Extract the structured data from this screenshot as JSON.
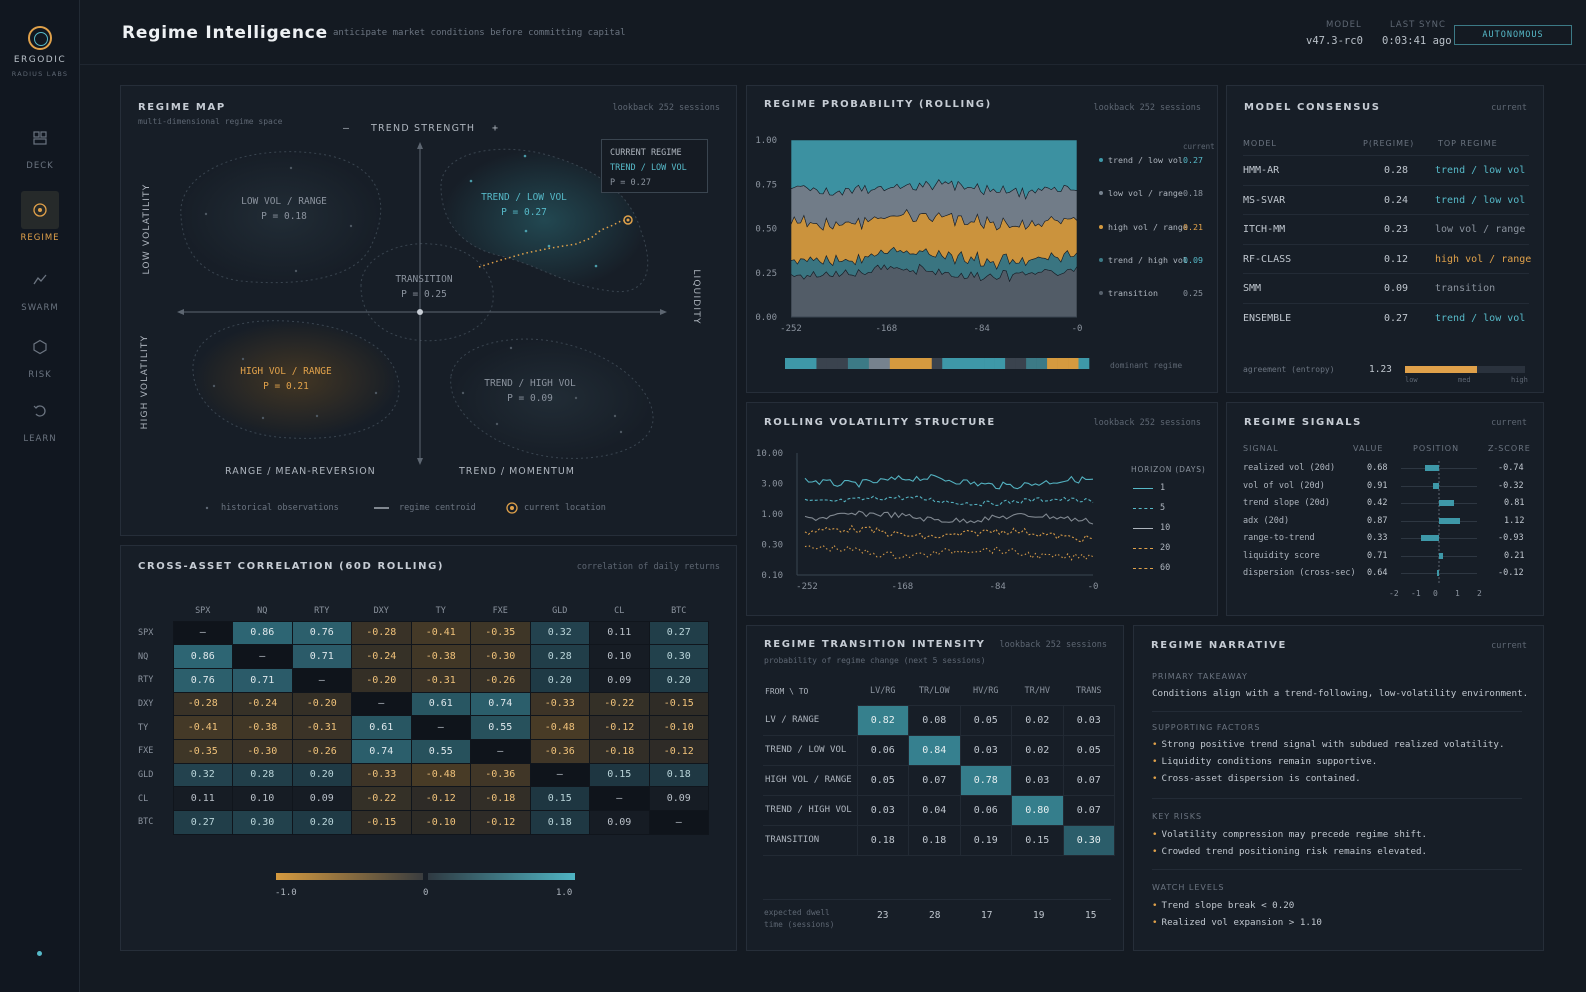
{
  "sidebar": {
    "brand": "ERGODIC",
    "sub": "RADIUS LABS",
    "items": [
      {
        "label": "DECK",
        "icon": "deck-icon"
      },
      {
        "label": "REGIME",
        "icon": "regime-icon"
      },
      {
        "label": "SWARM",
        "icon": "swarm-icon"
      },
      {
        "label": "RISK",
        "icon": "risk-icon"
      },
      {
        "label": "LEARN",
        "icon": "learn-icon"
      }
    ]
  },
  "header": {
    "title": "Regime Intelligence",
    "subtitle": "anticipate market conditions before committing capital",
    "model_label": "MODEL",
    "model_value": "v47.3-rc0",
    "sync_label": "LAST SYNC",
    "sync_value": "0:03:41 ago",
    "mode": "AUTONOMOUS"
  },
  "regime_map": {
    "title": "REGIME MAP",
    "subtitle": "multi-dimensional regime space",
    "meta": "lookback 252 sessions",
    "top_axis": "TREND STRENGTH",
    "minus": "–",
    "plus": "+",
    "left_top": "LOW VOLATILITY",
    "left_bottom": "HIGH VOLATILITY",
    "right_axis": "LIQUIDITY",
    "bottom_left": "RANGE / MEAN-REVERSION",
    "bottom_right": "TREND / MOMENTUM",
    "regimes": [
      {
        "name": "LOW VOL / RANGE",
        "p": "P = 0.18"
      },
      {
        "name": "TREND / LOW VOL",
        "p": "P = 0.27"
      },
      {
        "name": "TRANSITION",
        "p": "P = 0.25"
      },
      {
        "name": "HIGH VOL / RANGE",
        "p": "P = 0.21"
      },
      {
        "name": "TREND / HIGH VOL",
        "p": "P = 0.09"
      }
    ],
    "current": {
      "label": "CURRENT REGIME",
      "name": "TREND / LOW VOL",
      "p": "P = 0.27"
    },
    "legend": [
      "historical observations",
      "regime centroid",
      "current location"
    ]
  },
  "probability": {
    "title": "REGIME PROBABILITY (ROLLING)",
    "meta": "lookback 252 sessions",
    "current_label": "current",
    "y_ticks": [
      "1.00",
      "0.75",
      "0.50",
      "0.25",
      "0.00"
    ],
    "x_ticks": [
      "-252",
      "-168",
      "-84",
      "-0"
    ],
    "legend": [
      {
        "name": "trend / low vol",
        "value": "0.27",
        "color": "#3e98a8"
      },
      {
        "name": "low vol / range",
        "value": "0.18",
        "color": "#76828e"
      },
      {
        "name": "high vol / range",
        "value": "0.21",
        "color": "#d59a3f"
      },
      {
        "name": "trend / high vol",
        "value": "0.09",
        "color": "#3c7a86"
      },
      {
        "name": "transition",
        "value": "0.25",
        "color": "#56606b"
      }
    ],
    "dominant_label": "dominant regime"
  },
  "consensus": {
    "title": "MODEL CONSENSUS",
    "meta": "current",
    "headers": [
      "MODEL",
      "P(REGIME)",
      "TOP REGIME"
    ],
    "rows": [
      {
        "model": "HMM-AR",
        "p": "0.28",
        "top": "trend / low vol",
        "tone": "teal"
      },
      {
        "model": "MS-SVAR",
        "p": "0.24",
        "top": "trend / low vol",
        "tone": "teal"
      },
      {
        "model": "ITCH-MM",
        "p": "0.23",
        "top": "low vol / range",
        "tone": "muted"
      },
      {
        "model": "RF-CLASS",
        "p": "0.12",
        "top": "high vol / range",
        "tone": "amber"
      },
      {
        "model": "SMM",
        "p": "0.09",
        "top": "transition",
        "tone": "muted"
      },
      {
        "model": "ENSEMBLE",
        "p": "0.27",
        "top": "trend / low vol",
        "tone": "teal"
      }
    ],
    "agreement_label": "agreement (entropy)",
    "agreement_value": "1.23",
    "agreement_fill": 0.6,
    "scale": [
      "low",
      "med",
      "high"
    ]
  },
  "volatility": {
    "title": "ROLLING VOLATILITY STRUCTURE",
    "meta": "lookback 252 sessions",
    "y_ticks": [
      "10.00",
      "3.00",
      "1.00",
      "0.30",
      "0.10"
    ],
    "x_ticks": [
      "-252",
      "-168",
      "-84",
      "-0"
    ],
    "legend_title": "HORIZON (DAYS)",
    "horizons": [
      "1",
      "5",
      "10",
      "20",
      "60"
    ]
  },
  "signals": {
    "title": "REGIME SIGNALS",
    "meta": "current",
    "headers": [
      "SIGNAL",
      "VALUE",
      "POSITION",
      "Z-SCORE"
    ],
    "rows": [
      {
        "name": "realized vol (20d)",
        "value": "0.68",
        "z": "-0.74",
        "zn": -0.74
      },
      {
        "name": "vol of vol (20d)",
        "value": "0.91",
        "z": "-0.32",
        "zn": -0.32
      },
      {
        "name": "trend slope (20d)",
        "value": "0.42",
        "z": "0.81",
        "zn": 0.81
      },
      {
        "name": "adx (20d)",
        "value": "0.87",
        "z": "1.12",
        "zn": 1.12
      },
      {
        "name": "range-to-trend",
        "value": "0.33",
        "z": "-0.93",
        "zn": -0.93
      },
      {
        "name": "liquidity score",
        "value": "0.71",
        "z": "0.21",
        "zn": 0.21
      },
      {
        "name": "dispersion (cross-sec)",
        "value": "0.64",
        "z": "-0.12",
        "zn": -0.12
      }
    ],
    "axis": [
      "-2",
      "-1",
      "0",
      "1",
      "2"
    ]
  },
  "correlation": {
    "title": "CROSS-ASSET CORRELATION (60D ROLLING)",
    "meta": "correlation of daily returns",
    "assets": [
      "SPX",
      "NQ",
      "RTY",
      "DXY",
      "TY",
      "FXE",
      "GLD",
      "CL",
      "BTC"
    ],
    "matrix": [
      [
        "—",
        "0.86",
        "0.76",
        "-0.28",
        "-0.41",
        "-0.35",
        "0.32",
        "0.11",
        "0.27"
      ],
      [
        "0.86",
        "—",
        "0.71",
        "-0.24",
        "-0.38",
        "-0.30",
        "0.28",
        "0.10",
        "0.30"
      ],
      [
        "0.76",
        "0.71",
        "—",
        "-0.20",
        "-0.31",
        "-0.26",
        "0.20",
        "0.09",
        "0.20"
      ],
      [
        "-0.28",
        "-0.24",
        "-0.20",
        "—",
        "0.61",
        "0.74",
        "-0.33",
        "-0.22",
        "-0.15"
      ],
      [
        "-0.41",
        "-0.38",
        "-0.31",
        "0.61",
        "—",
        "0.55",
        "-0.48",
        "-0.12",
        "-0.10"
      ],
      [
        "-0.35",
        "-0.30",
        "-0.26",
        "0.74",
        "0.55",
        "—",
        "-0.36",
        "-0.18",
        "-0.12"
      ],
      [
        "0.32",
        "0.28",
        "0.20",
        "-0.33",
        "-0.48",
        "-0.36",
        "—",
        "0.15",
        "0.18"
      ],
      [
        "0.11",
        "0.10",
        "0.09",
        "-0.22",
        "-0.12",
        "-0.18",
        "0.15",
        "—",
        "0.09"
      ],
      [
        "0.27",
        "0.30",
        "0.20",
        "-0.15",
        "-0.10",
        "-0.12",
        "0.18",
        "0.09",
        "—"
      ]
    ],
    "scale": [
      "-1.0",
      "0",
      "1.0"
    ]
  },
  "transition": {
    "title": "REGIME TRANSITION INTENSITY",
    "meta": "lookback 252 sessions",
    "subtitle": "probability of regime change (next 5 sessions)",
    "corner": "FROM \\ TO",
    "cols": [
      "LV/RG",
      "TR/LOW",
      "HV/RG",
      "TR/HV",
      "TRANS"
    ],
    "rows": [
      {
        "label": "LV / RANGE",
        "values": [
          "0.82",
          "0.08",
          "0.05",
          "0.02",
          "0.03"
        ]
      },
      {
        "label": "TREND / LOW VOL",
        "values": [
          "0.06",
          "0.84",
          "0.03",
          "0.02",
          "0.05"
        ]
      },
      {
        "label": "HIGH VOL / RANGE",
        "values": [
          "0.05",
          "0.07",
          "0.78",
          "0.03",
          "0.07"
        ]
      },
      {
        "label": "TREND / HIGH VOL",
        "values": [
          "0.03",
          "0.04",
          "0.06",
          "0.80",
          "0.07"
        ]
      },
      {
        "label": "TRANSITION",
        "values": [
          "0.18",
          "0.18",
          "0.19",
          "0.15",
          "0.30"
        ]
      }
    ],
    "dwell_label_1": "expected dwell",
    "dwell_label_2": "time (sessions)",
    "dwell": [
      "23",
      "28",
      "17",
      "19",
      "15"
    ]
  },
  "narrative": {
    "title": "REGIME NARRATIVE",
    "meta": "current",
    "primary_h": "PRIMARY TAKEAWAY",
    "primary": "Conditions align with a trend-following, low-volatility environment.",
    "supporting_h": "SUPPORTING FACTORS",
    "supporting": [
      "Strong positive trend signal with subdued realized volatility.",
      "Liquidity conditions remain supportive.",
      "Cross-asset dispersion is contained."
    ],
    "risks_h": "KEY RISKS",
    "risks": [
      "Volatility compression may precede regime shift.",
      "Crowded trend positioning risk remains elevated."
    ],
    "watch_h": "WATCH LEVELS",
    "watch": [
      "Trend slope break < 0.20",
      "Realized vol expansion > 1.10"
    ]
  }
}
